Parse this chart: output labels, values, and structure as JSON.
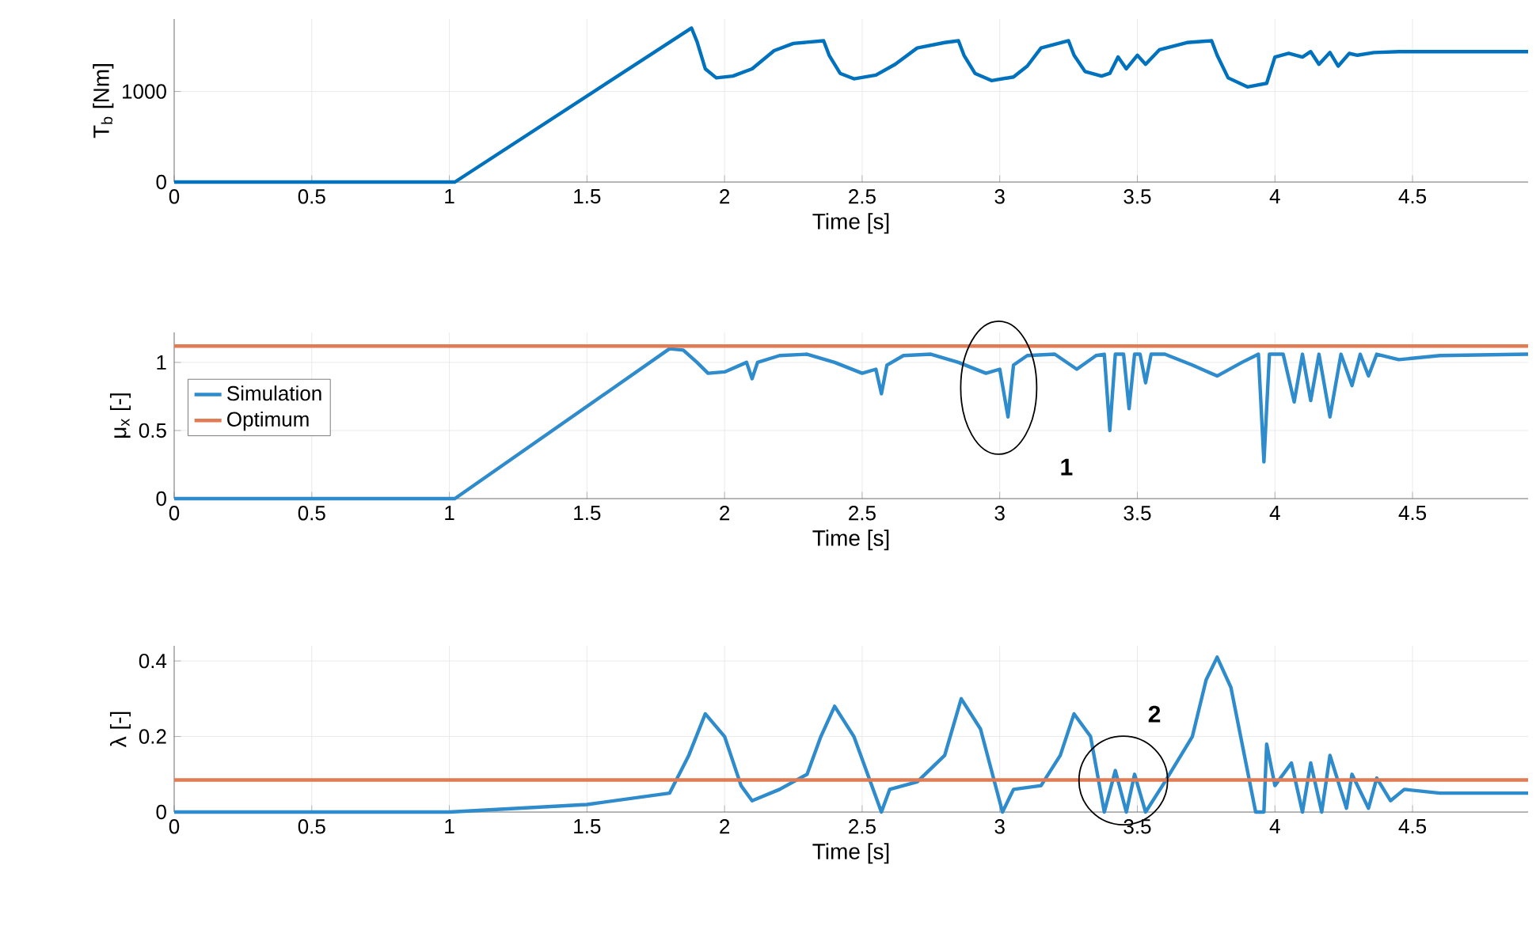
{
  "chart_data": [
    {
      "type": "line",
      "xlabel": "Time [s]",
      "ylabel": "T$_{b}$ [Nm]",
      "grid": true,
      "xlim": [
        0,
        4.92
      ],
      "ylim": [
        0,
        1800
      ],
      "xticks": [
        0,
        0.5,
        1,
        1.5,
        2,
        2.5,
        3,
        3.5,
        4,
        4.5
      ],
      "yticks": [
        0,
        1000
      ],
      "series": [
        {
          "color": "#0072bd",
          "x": [
            0,
            1.02,
            1.88,
            1.9,
            1.93,
            1.97,
            2.03,
            2.1,
            2.18,
            2.25,
            2.36,
            2.38,
            2.42,
            2.47,
            2.55,
            2.62,
            2.7,
            2.8,
            2.85,
            2.87,
            2.91,
            2.97,
            3.05,
            3.1,
            3.15,
            3.25,
            3.27,
            3.31,
            3.37,
            3.4,
            3.43,
            3.46,
            3.5,
            3.53,
            3.58,
            3.68,
            3.77,
            3.79,
            3.83,
            3.9,
            3.97,
            4.0,
            4.05,
            4.1,
            4.13,
            4.16,
            4.2,
            4.23,
            4.27,
            4.3,
            4.36,
            4.45,
            4.92
          ],
          "values": [
            0,
            0,
            1700,
            1550,
            1250,
            1150,
            1170,
            1250,
            1450,
            1530,
            1560,
            1400,
            1200,
            1140,
            1180,
            1300,
            1480,
            1540,
            1560,
            1400,
            1200,
            1120,
            1160,
            1280,
            1480,
            1560,
            1400,
            1220,
            1170,
            1200,
            1380,
            1250,
            1400,
            1300,
            1460,
            1540,
            1560,
            1400,
            1150,
            1050,
            1090,
            1380,
            1420,
            1380,
            1440,
            1300,
            1430,
            1280,
            1420,
            1400,
            1430,
            1440,
            1440
          ]
        }
      ]
    },
    {
      "type": "line",
      "xlabel": "Time [s]",
      "ylabel": "μ$_{x}$ [-]",
      "grid": true,
      "legend": "top left",
      "xlim": [
        0,
        4.92
      ],
      "ylim": [
        0,
        1.22
      ],
      "xticks": [
        0,
        0.5,
        1,
        1.5,
        2,
        2.5,
        3,
        3.5,
        4,
        4.5
      ],
      "yticks": [
        0,
        0.5,
        1
      ],
      "annotations": [
        "1"
      ],
      "series": [
        {
          "name": "Simulation",
          "color": "#2e8bcc",
          "x": [
            0,
            1.02,
            1.8,
            1.85,
            1.9,
            1.94,
            2.0,
            2.08,
            2.1,
            2.12,
            2.2,
            2.3,
            2.4,
            2.5,
            2.55,
            2.57,
            2.59,
            2.65,
            2.75,
            2.85,
            2.95,
            3.0,
            3.03,
            3.05,
            3.1,
            3.2,
            3.28,
            3.35,
            3.38,
            3.4,
            3.42,
            3.45,
            3.47,
            3.49,
            3.51,
            3.53,
            3.55,
            3.6,
            3.7,
            3.79,
            3.88,
            3.94,
            3.96,
            3.98,
            4.03,
            4.07,
            4.1,
            4.13,
            4.16,
            4.2,
            4.24,
            4.28,
            4.31,
            4.34,
            4.37,
            4.45,
            4.6,
            4.92
          ],
          "values": [
            0,
            0,
            1.1,
            1.09,
            1.0,
            0.92,
            0.93,
            1.0,
            0.88,
            1.0,
            1.05,
            1.06,
            1.0,
            0.92,
            0.95,
            0.77,
            0.98,
            1.05,
            1.06,
            1.0,
            0.92,
            0.95,
            0.6,
            0.98,
            1.05,
            1.06,
            0.95,
            1.05,
            1.06,
            0.5,
            1.06,
            1.06,
            0.66,
            1.06,
            1.06,
            0.85,
            1.06,
            1.06,
            0.98,
            0.9,
            1.0,
            1.06,
            0.27,
            1.06,
            1.06,
            0.71,
            1.06,
            0.72,
            1.06,
            0.6,
            1.06,
            0.83,
            1.06,
            0.9,
            1.06,
            1.02,
            1.05,
            1.06
          ]
        },
        {
          "name": "Optimum",
          "color": "#e07b54",
          "x": [
            0,
            4.92
          ],
          "values": [
            1.12,
            1.12
          ]
        }
      ]
    },
    {
      "type": "line",
      "xlabel": "Time [s]",
      "ylabel": "λ [-]",
      "grid": true,
      "xlim": [
        0,
        4.92
      ],
      "ylim": [
        0,
        0.44
      ],
      "xticks": [
        0,
        0.5,
        1,
        1.5,
        2,
        2.5,
        3,
        3.5,
        4,
        4.5
      ],
      "yticks": [
        0,
        0.2,
        0.4
      ],
      "annotations": [
        "2"
      ],
      "series": [
        {
          "color": "#2e8bcc",
          "x": [
            0,
            1.0,
            1.5,
            1.8,
            1.87,
            1.93,
            2.0,
            2.06,
            2.1,
            2.2,
            2.3,
            2.35,
            2.4,
            2.47,
            2.57,
            2.6,
            2.7,
            2.8,
            2.86,
            2.93,
            3.01,
            3.05,
            3.15,
            3.22,
            3.27,
            3.33,
            3.38,
            3.42,
            3.46,
            3.49,
            3.53,
            3.6,
            3.7,
            3.75,
            3.79,
            3.84,
            3.93,
            3.96,
            3.97,
            4.0,
            4.06,
            4.1,
            4.13,
            4.17,
            4.2,
            4.26,
            4.28,
            4.34,
            4.37,
            4.42,
            4.47,
            4.6,
            4.92
          ],
          "values": [
            0,
            0,
            0.02,
            0.05,
            0.15,
            0.26,
            0.2,
            0.07,
            0.03,
            0.06,
            0.1,
            0.2,
            0.28,
            0.2,
            0,
            0.06,
            0.08,
            0.15,
            0.3,
            0.22,
            0,
            0.06,
            0.07,
            0.15,
            0.26,
            0.2,
            0,
            0.11,
            0,
            0.1,
            0,
            0.08,
            0.2,
            0.35,
            0.41,
            0.33,
            0,
            0,
            0.18,
            0.07,
            0.13,
            0,
            0.13,
            0,
            0.15,
            0.01,
            0.1,
            0.01,
            0.09,
            0.03,
            0.06,
            0.05,
            0.05
          ]
        },
        {
          "color": "#e07b54",
          "x": [
            0,
            4.92
          ],
          "values": [
            0.085,
            0.085
          ]
        }
      ]
    }
  ]
}
